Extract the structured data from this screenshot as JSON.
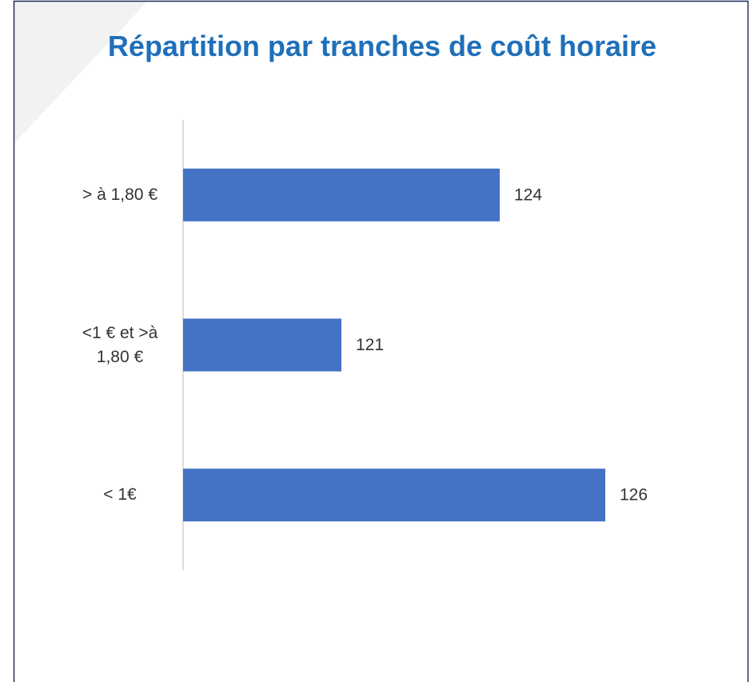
{
  "chart_data": {
    "type": "bar",
    "orientation": "horizontal",
    "title": "Répartition par tranches de coût horaire",
    "categories": [
      "> à 1,80 €",
      "<1 € et >à 1,80 €",
      "< 1€"
    ],
    "values": [
      124,
      121,
      126
    ],
    "color": "#4472c4",
    "xlim": [
      118,
      128
    ]
  }
}
